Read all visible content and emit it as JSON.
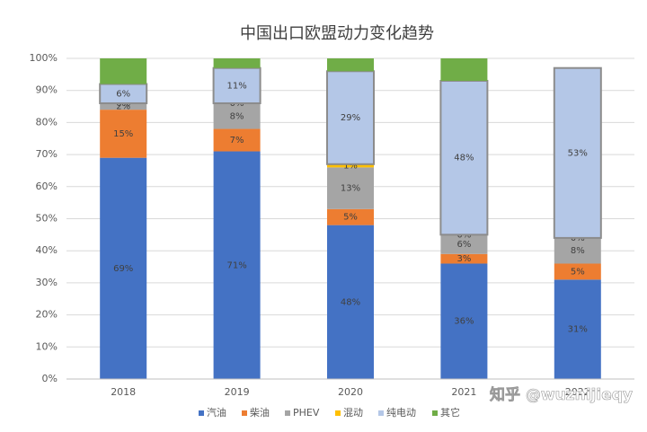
{
  "chart_data": {
    "type": "stacked-bar",
    "title": "中国出口欧盟动力变化趋势",
    "categories": [
      "2018",
      "2019",
      "2020",
      "2021",
      "2022"
    ],
    "series": [
      {
        "name": "汽油",
        "color": "#4472c4",
        "values": [
          69,
          71,
          48,
          36,
          31
        ],
        "value_labels": [
          "69%",
          "71%",
          "48%",
          "36%",
          "31%"
        ]
      },
      {
        "name": "柴油",
        "color": "#ed7d31",
        "values": [
          15,
          7,
          5,
          3,
          5
        ],
        "value_labels": [
          "15%",
          "7%",
          "5%",
          "3%",
          "5%"
        ]
      },
      {
        "name": "PHEV",
        "color": "#a5a5a5",
        "values": [
          2,
          8,
          13,
          6,
          8
        ],
        "value_labels": [
          "2%",
          "8%",
          "13%",
          "6%",
          "8%"
        ]
      },
      {
        "name": "混动",
        "color": "#ffc000",
        "values": [
          0,
          0,
          1,
          0,
          0
        ],
        "value_labels": [
          "0%",
          "0%",
          "1%",
          "0%",
          "0%"
        ]
      },
      {
        "name": "纯电动",
        "color": "#b4c7e7",
        "values": [
          6,
          11,
          29,
          48,
          53
        ],
        "value_labels": [
          "6%",
          "11%",
          "29%",
          "48%",
          "53%"
        ]
      },
      {
        "name": "其它",
        "color": "#70ad47",
        "values": [
          8,
          3,
          4,
          7,
          0
        ]
      }
    ],
    "ylim": [
      0,
      100
    ],
    "yticks": [
      {
        "value": 0,
        "label": "0%"
      },
      {
        "value": 10,
        "label": "10%"
      },
      {
        "value": 20,
        "label": "20%"
      },
      {
        "value": 30,
        "label": "30%"
      },
      {
        "value": 40,
        "label": "40%"
      },
      {
        "value": 50,
        "label": "50%"
      },
      {
        "value": 60,
        "label": "60%"
      },
      {
        "value": 70,
        "label": "70%"
      },
      {
        "value": 80,
        "label": "80%"
      },
      {
        "value": 90,
        "label": "90%"
      },
      {
        "value": 100,
        "label": "100%"
      }
    ],
    "grid": true,
    "legend": "bottom",
    "watermark": "知乎 @wuznijieqy"
  }
}
